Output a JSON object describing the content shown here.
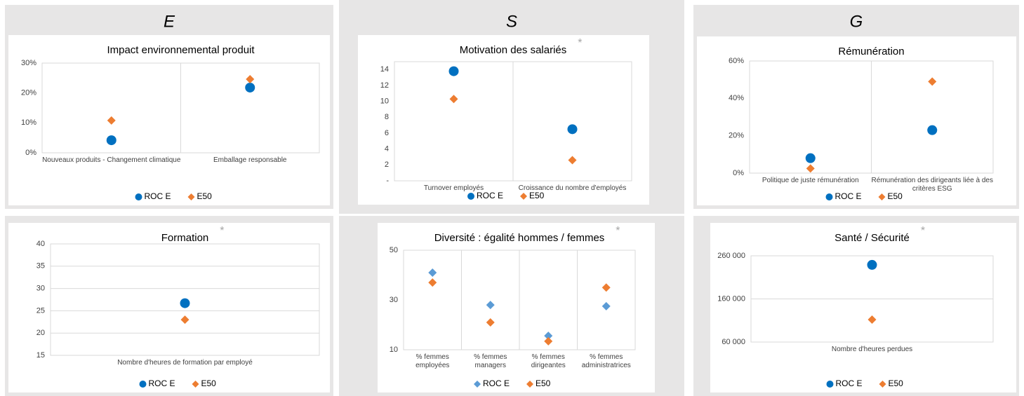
{
  "sections": [
    "E",
    "S",
    "G"
  ],
  "chart_data": [
    {
      "type": "dot",
      "title": "Impact environnemental produit",
      "categories": [
        "Nouveaux produits - Changement climatique",
        "Emballage responsable"
      ],
      "ylim": [
        0,
        30
      ],
      "yticks": [
        {
          "value": 0,
          "label": "0%"
        },
        {
          "value": 10,
          "label": "10%"
        },
        {
          "value": 20,
          "label": "20%"
        },
        {
          "value": 30,
          "label": "30%"
        }
      ],
      "grid": "x",
      "series": [
        {
          "name": "ROC E",
          "color": "#0070c0",
          "marker": "circle",
          "values": [
            4.2,
            21.8
          ]
        },
        {
          "name": "E50",
          "color": "#ed7d31",
          "marker": "diamond",
          "values": [
            10.8,
            24.6
          ]
        }
      ]
    },
    {
      "type": "dot",
      "title": "Motivation des salariés",
      "annotation": "*",
      "categories": [
        "Turnover employés",
        "Croissance du nombre d'employés"
      ],
      "ylim": [
        0,
        15
      ],
      "yticks": [
        {
          "value": 0,
          "label": "-"
        },
        2,
        4,
        6,
        8,
        10,
        12,
        14
      ],
      "grid": "x",
      "series": [
        {
          "name": "ROC E",
          "color": "#0070c0",
          "marker": "circle",
          "values": [
            13.8,
            6.5
          ]
        },
        {
          "name": "E50",
          "color": "#ed7d31",
          "marker": "diamond",
          "values": [
            10.3,
            2.6
          ]
        }
      ]
    },
    {
      "type": "dot",
      "title": "Rémunération",
      "categories": [
        "Politique de juste rémunération",
        "Rémunération des dirigeants liée à des critères ESG"
      ],
      "ylim": [
        0,
        60
      ],
      "yticks": [
        {
          "value": 0,
          "label": "0%"
        },
        {
          "value": 20,
          "label": "20%"
        },
        {
          "value": 40,
          "label": "40%"
        },
        {
          "value": 60,
          "label": "60%"
        }
      ],
      "grid": "x",
      "series": [
        {
          "name": "ROC E",
          "color": "#0070c0",
          "marker": "circle",
          "values": [
            8,
            23
          ]
        },
        {
          "name": "E50",
          "color": "#ed7d31",
          "marker": "diamond",
          "values": [
            2.5,
            49
          ]
        }
      ]
    },
    {
      "type": "dot",
      "title": "Formation",
      "annotation": "*",
      "categories": [
        "Nombre d'heures de formation par employé"
      ],
      "ylim": [
        15,
        40
      ],
      "yticks": [
        15,
        20,
        25,
        30,
        35,
        40
      ],
      "grid": "y",
      "series": [
        {
          "name": "ROC E",
          "color": "#0070c0",
          "marker": "circle",
          "values": [
            26.7
          ]
        },
        {
          "name": "E50",
          "color": "#ed7d31",
          "marker": "diamond",
          "values": [
            23
          ]
        }
      ]
    },
    {
      "type": "dot",
      "title": "Diversité : égalité hommes / femmes",
      "annotation": "*",
      "categories": [
        "% femmes employées",
        "% femmes managers",
        "% femmes dirigeantes",
        "% femmes administratrices"
      ],
      "ylim": [
        10,
        50
      ],
      "yticks": [
        10,
        30,
        50
      ],
      "grid": "x",
      "series": [
        {
          "name": "ROC E",
          "color": "#5b9bd5",
          "marker": "diamond",
          "values": [
            41,
            28,
            15.6,
            27.5
          ]
        },
        {
          "name": "E50",
          "color": "#ed7d31",
          "marker": "diamond",
          "values": [
            37,
            21,
            13.4,
            35
          ]
        }
      ]
    },
    {
      "type": "dot",
      "title": "Santé / Sécurité",
      "annotation": "*",
      "categories": [
        "Nombre d'heures perdues"
      ],
      "ylim": [
        60000,
        260000
      ],
      "yticks": [
        {
          "value": 60000,
          "label": "60 000"
        },
        {
          "value": 160000,
          "label": "160 000"
        },
        {
          "value": 260000,
          "label": "260 000"
        }
      ],
      "grid": "y",
      "series": [
        {
          "name": "ROC E",
          "color": "#0070c0",
          "marker": "circle",
          "values": [
            239000
          ]
        },
        {
          "name": "E50",
          "color": "#ed7d31",
          "marker": "diamond",
          "values": [
            112000
          ]
        }
      ]
    }
  ]
}
